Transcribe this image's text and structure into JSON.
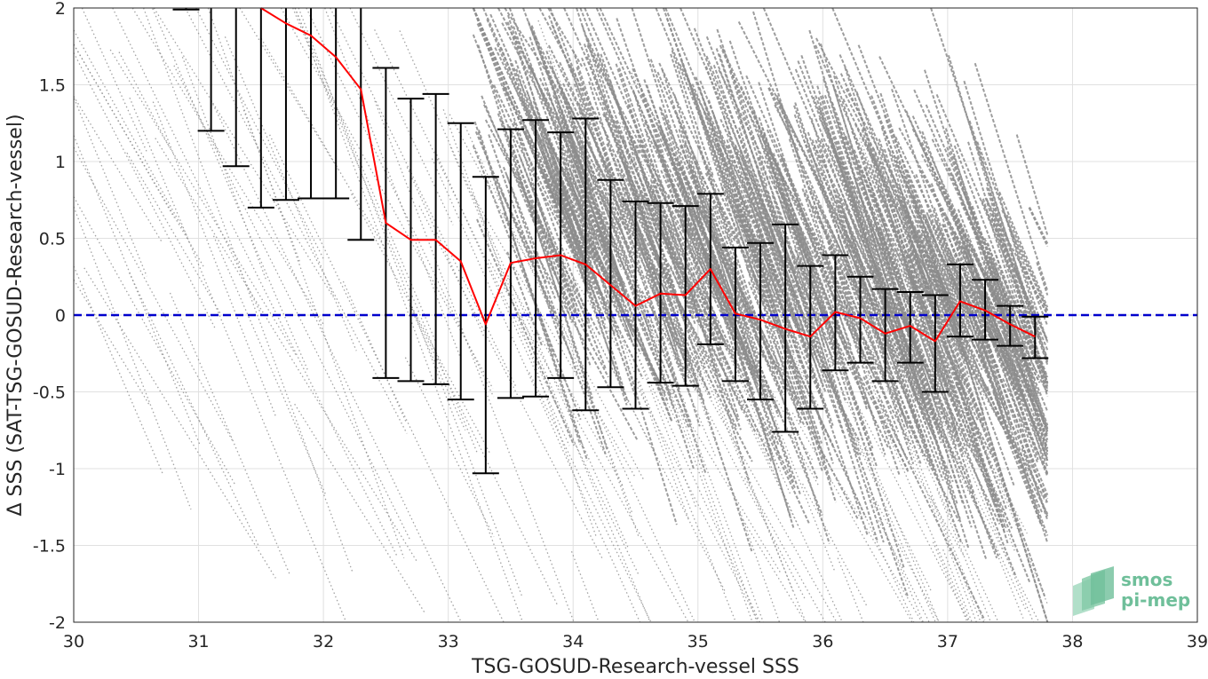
{
  "chart_data": {
    "type": "scatter",
    "xlabel": "TSG-GOSUD-Research-vessel SSS",
    "ylabel": "Δ SSS (SAT-TSG-GOSUD-Research-vessel)",
    "xlim": [
      30,
      39
    ],
    "ylim": [
      -2,
      2
    ],
    "x_ticks": [
      30,
      31,
      32,
      33,
      34,
      35,
      36,
      37,
      38,
      39
    ],
    "y_ticks": [
      -2,
      -1.5,
      -1,
      -0.5,
      0,
      0.5,
      1,
      1.5,
      2
    ],
    "grid": true,
    "colors": {
      "scatter": "#8c8c8c",
      "mean": "#ff0000",
      "errorbar": "#000000",
      "zero_line": "#0000cc"
    },
    "scatter_description": "dense gray points lying along parallel diagonal streaks with negative slope, most concentrated between SSS 34 and 37.8",
    "zero_line": {
      "y": 0,
      "style": "dashed"
    },
    "binned_stats": {
      "x": [
        30.9,
        31.1,
        31.3,
        31.5,
        31.7,
        31.9,
        32.1,
        32.3,
        32.5,
        32.7,
        32.9,
        33.1,
        33.3,
        33.5,
        33.7,
        33.9,
        34.1,
        34.3,
        34.5,
        34.7,
        34.9,
        35.1,
        35.3,
        35.5,
        35.7,
        35.9,
        36.1,
        36.3,
        36.5,
        36.7,
        36.9,
        37.1,
        37.3,
        37.5,
        37.7
      ],
      "mean": [
        null,
        null,
        null,
        2.0,
        1.9,
        1.82,
        1.68,
        1.47,
        0.6,
        0.49,
        0.49,
        0.35,
        -0.06,
        0.34,
        0.37,
        0.39,
        0.33,
        null,
        0.06,
        0.14,
        0.13,
        0.3,
        0.01,
        -0.03,
        -0.09,
        -0.14,
        0.02,
        -0.02,
        -0.12,
        -0.07,
        -0.17,
        0.09,
        0.03,
        -0.06,
        -0.14
      ],
      "lower": [
        1.99,
        1.2,
        0.97,
        0.7,
        0.75,
        0.76,
        0.76,
        0.49,
        -0.41,
        -0.43,
        -0.45,
        -0.55,
        -1.03,
        -0.54,
        -0.53,
        -0.41,
        -0.62,
        -0.47,
        -0.61,
        -0.44,
        -0.46,
        -0.19,
        -0.43,
        -0.55,
        -0.76,
        -0.61,
        -0.36,
        -0.31,
        -0.43,
        -0.31,
        -0.5,
        -0.14,
        -0.16,
        -0.2,
        -0.28
      ],
      "upper": [
        2.0,
        2.0,
        2.0,
        2.0,
        2.0,
        2.0,
        2.0,
        2.0,
        1.61,
        1.41,
        1.44,
        1.25,
        0.9,
        1.21,
        1.27,
        1.19,
        1.28,
        0.88,
        0.74,
        0.73,
        0.71,
        0.79,
        0.44,
        0.47,
        0.59,
        0.32,
        0.39,
        0.25,
        0.17,
        0.15,
        0.13,
        0.33,
        0.23,
        0.06,
        -0.01
      ]
    }
  },
  "logo": {
    "line1": "smos",
    "line2": "pi-mep"
  }
}
